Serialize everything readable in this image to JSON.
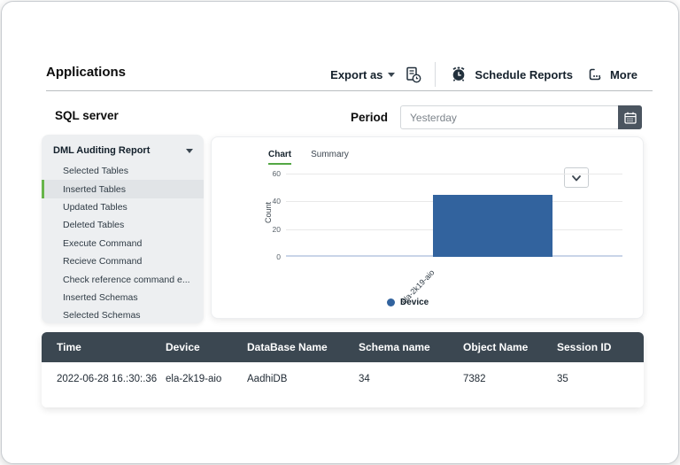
{
  "page": {
    "title": "Applications",
    "section": "SQL server"
  },
  "toolbar": {
    "export_label": "Export as",
    "schedule_label": "Schedule Reports",
    "more_label": "More"
  },
  "period": {
    "label": "Period",
    "placeholder": "Yesterday"
  },
  "sidebar": {
    "header": "DML Auditing Report",
    "items": [
      {
        "label": "Selected Tables",
        "selected": false
      },
      {
        "label": "Inserted Tables",
        "selected": true
      },
      {
        "label": "Updated Tables",
        "selected": false
      },
      {
        "label": "Deleted Tables",
        "selected": false
      },
      {
        "label": "Execute Command",
        "selected": false
      },
      {
        "label": "Recieve Command",
        "selected": false
      },
      {
        "label": "Check reference command e...",
        "selected": false
      },
      {
        "label": "Inserted Schemas",
        "selected": false
      },
      {
        "label": "Selected Schemas",
        "selected": false
      }
    ]
  },
  "chart": {
    "tabs": [
      "Chart",
      "Summary"
    ]
  },
  "chart_data": {
    "type": "bar",
    "categories": [
      "ela-2k19-aio"
    ],
    "values": [
      45
    ],
    "title": "",
    "xlabel": "",
    "ylabel": "Count",
    "ylim": [
      0,
      60
    ],
    "yticks": [
      0,
      20,
      40,
      60
    ],
    "grid": true,
    "bar_color": "#32639e",
    "legend": [
      "Device"
    ],
    "legend_position": "bottom"
  },
  "table": {
    "columns": [
      "Time",
      "Device",
      "DataBase Name",
      "Schema name",
      "Object Name",
      "Session ID"
    ],
    "rows": [
      [
        "2022-06-28 16.:30:.36",
        "ela-2k19-aio",
        "AadhiDB",
        "34",
        "7382",
        "35"
      ]
    ]
  },
  "colors": {
    "accent_green": "#53a744",
    "bar_blue": "#32639e",
    "table_header_bg": "#3b4751",
    "calendar_button_bg": "#4b5560"
  }
}
